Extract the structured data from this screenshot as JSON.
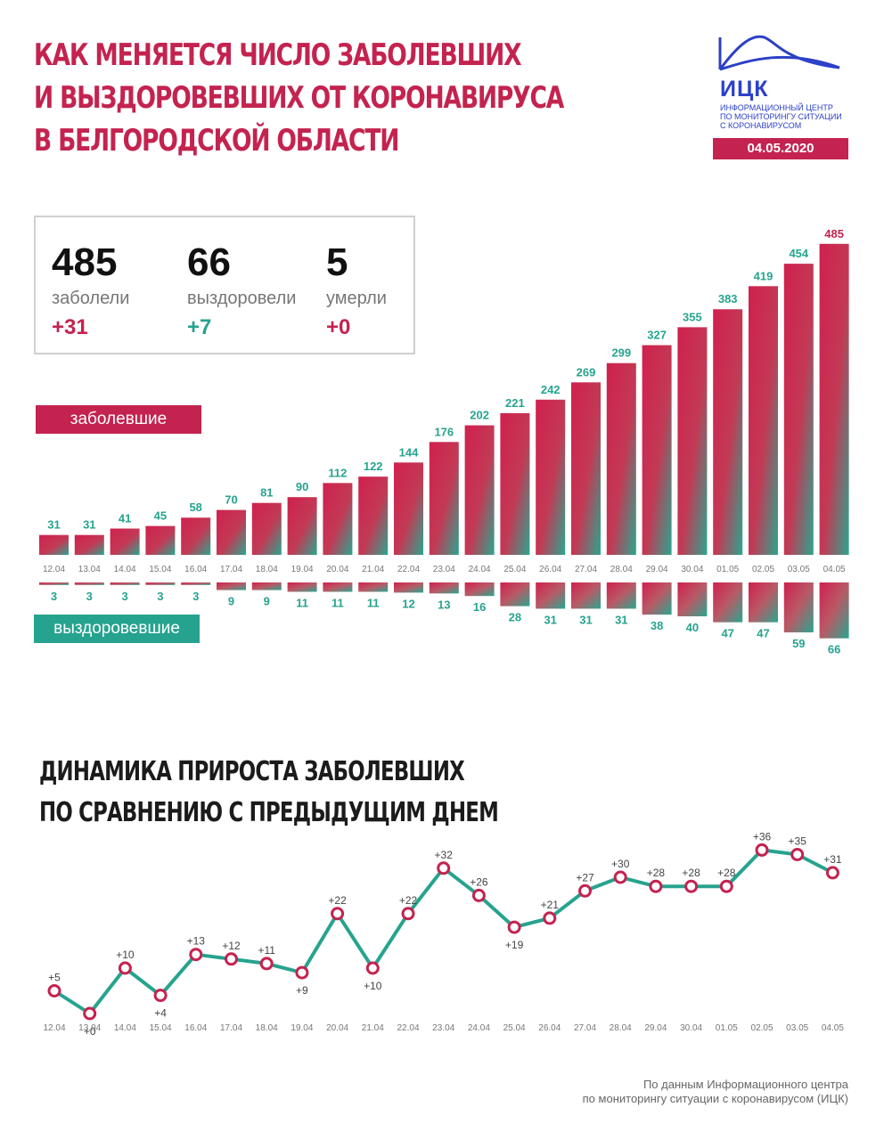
{
  "title": {
    "line1": "КАК МЕНЯЕТСЯ ЧИСЛО ЗАБОЛЕВШИХ",
    "line2": "И ВЫЗДОРОВЕВШИХ ОТ КОРОНАВИРУСА",
    "line3": "В БЕЛГОРОДСКОЙ ОБЛАСТИ"
  },
  "logo": {
    "abbr": "ИЦК",
    "sub1": "Информационный центр",
    "sub2": "по мониторингу ситуации",
    "sub3": "с коронавирусом",
    "date": "04.05.2020",
    "icon": "mountain-wave-logo"
  },
  "stats": {
    "sick": {
      "value": "485",
      "label": "заболели",
      "delta": "+31"
    },
    "recovered": {
      "value": "66",
      "label": "выздоровели",
      "delta": "+7"
    },
    "died": {
      "value": "5",
      "label": "умерли",
      "delta": "+0"
    }
  },
  "tags": {
    "sick": "заболевшие",
    "recovered": "выздоровевшие"
  },
  "subtitle": {
    "line1": "ДИНАМИКА ПРИРОСТА ЗАБОЛЕВШИХ",
    "line2": "ПО СРАВНЕНИЮ С ПРЕДЫДУЩИМ ДНЕМ"
  },
  "footer": {
    "line1": "По данным Информационного центра",
    "line2": "по мониторингу ситуации с коронавирусом (ИЦК)"
  },
  "colors": {
    "sick": "#c4234f",
    "recovered": "#26a38e",
    "text": "#1b1b1b",
    "axis": "#777777"
  },
  "chart_data": [
    {
      "type": "bar",
      "categories": [
        "12.04",
        "13.04",
        "14.04",
        "15.04",
        "16.04",
        "17.04",
        "18.04",
        "19.04",
        "20.04",
        "21.04",
        "22.04",
        "23.04",
        "24.04",
        "25.04",
        "26.04",
        "27.04",
        "28.04",
        "29.04",
        "30.04",
        "01.05",
        "02.05",
        "03.05",
        "04.05"
      ],
      "series": [
        {
          "name": "заболевшие",
          "values": [
            31,
            31,
            41,
            45,
            58,
            70,
            81,
            90,
            112,
            122,
            144,
            176,
            202,
            221,
            242,
            269,
            299,
            327,
            355,
            383,
            419,
            454,
            485
          ]
        },
        {
          "name": "выздоровевшие",
          "values": [
            3,
            3,
            3,
            3,
            3,
            9,
            9,
            11,
            11,
            11,
            12,
            13,
            16,
            28,
            31,
            31,
            31,
            38,
            40,
            47,
            47,
            59,
            66
          ]
        }
      ],
      "title": "",
      "xlabel": "",
      "ylabel": ""
    },
    {
      "type": "line",
      "title": "",
      "categories": [
        "12.04",
        "13.04",
        "14.04",
        "15.04",
        "16.04",
        "17.04",
        "18.04",
        "19.04",
        "20.04",
        "21.04",
        "22.04",
        "23.04",
        "24.04",
        "25.04",
        "26.04",
        "27.04",
        "28.04",
        "29.04",
        "30.04",
        "01.05",
        "02.05",
        "03.05",
        "04.05"
      ],
      "values": [
        5,
        0,
        10,
        4,
        13,
        12,
        11,
        9,
        22,
        10,
        22,
        32,
        26,
        19,
        21,
        27,
        30,
        28,
        28,
        28,
        36,
        35,
        31
      ],
      "labels": [
        "+5",
        "+0",
        "+10",
        "+4",
        "+13",
        "+12",
        "+11",
        "+9",
        "+22",
        "+10",
        "+22",
        "+32",
        "+26",
        "+19",
        "+21",
        "+27",
        "+30",
        "+28",
        "+28",
        "+28",
        "+36",
        "+35",
        "+31"
      ]
    }
  ]
}
